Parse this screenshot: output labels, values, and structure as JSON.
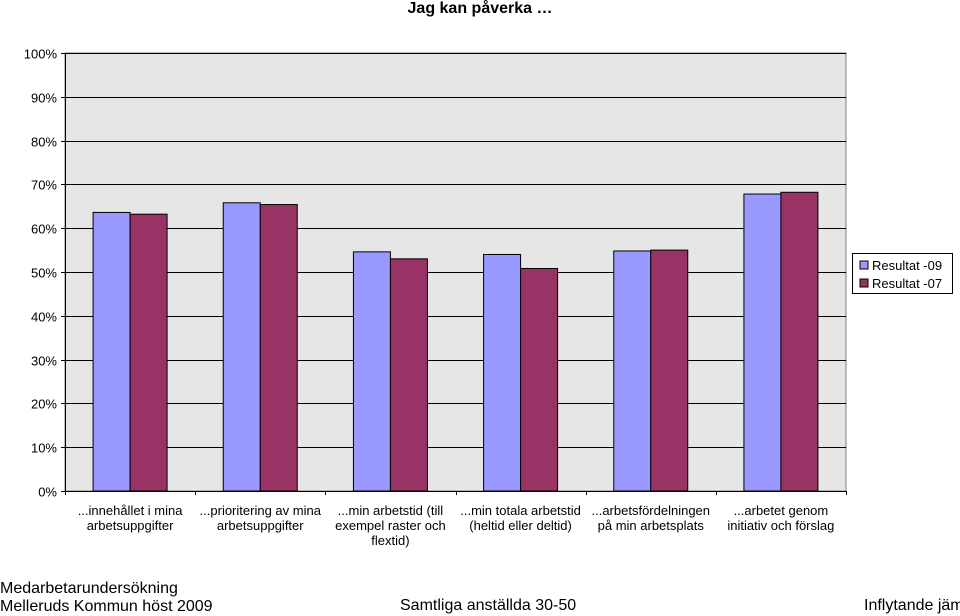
{
  "chart_data": {
    "type": "bar",
    "title": "Jag kan påverka …",
    "categories": [
      [
        "...innehållet i mina",
        "arbetsuppgifter"
      ],
      [
        "...prioritering av mina",
        "arbetsuppgifter"
      ],
      [
        "...min arbetstid (till",
        "exempel raster och",
        "flextid)"
      ],
      [
        "...min totala arbetstid",
        "(heltid eller deltid)"
      ],
      [
        "...arbetsfördelningen",
        "på min arbetsplats"
      ],
      [
        "...arbetet genom",
        "initiativ och förslag"
      ]
    ],
    "series": [
      {
        "name": "Resultat -09",
        "color": "#9999ff",
        "values": [
          63.6,
          65.8,
          54.6,
          54.0,
          54.8,
          67.8
        ]
      },
      {
        "name": "Resultat -07",
        "color": "#993366",
        "values": [
          63.2,
          65.4,
          53.0,
          50.8,
          55.0,
          68.2
        ]
      }
    ],
    "ylim": [
      0,
      100
    ],
    "yticks": [
      0,
      10,
      20,
      30,
      40,
      50,
      60,
      70,
      80,
      90,
      100
    ],
    "ytick_suffix": "%",
    "grid": true,
    "plot_background": "#e6e6e6",
    "legend": "right"
  },
  "footer": {
    "line1": "Medarbetarundersökning",
    "line2": "Melleruds Kommun höst 2009",
    "center": "Samtliga anställda 30-50",
    "right": "Inflytande jämf"
  }
}
